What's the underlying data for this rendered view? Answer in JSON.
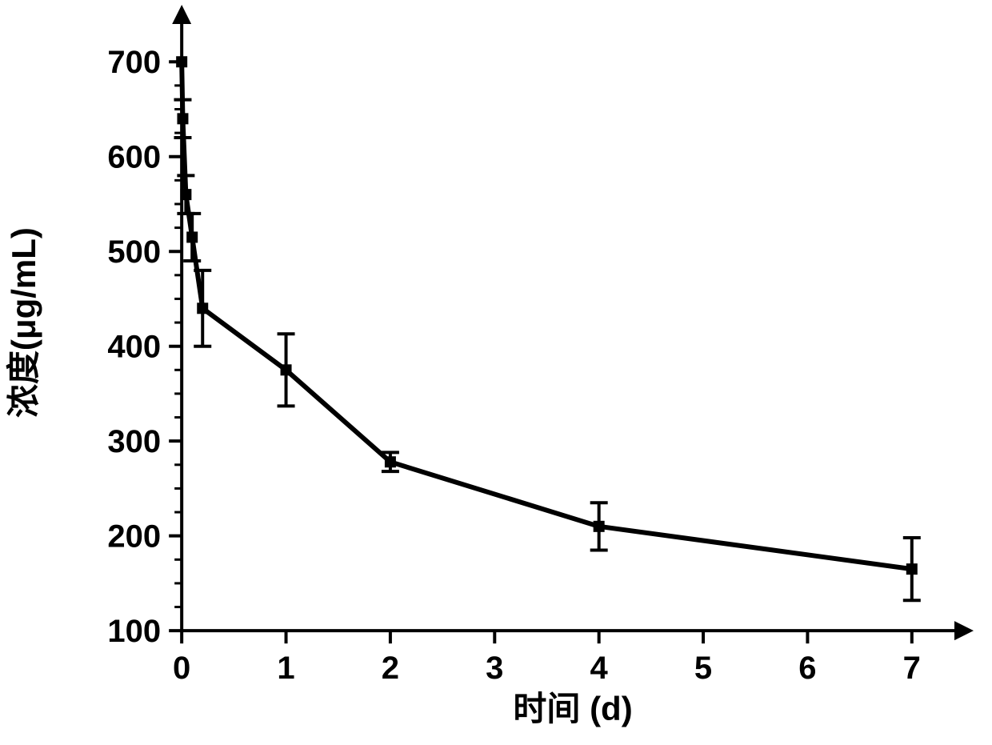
{
  "chart": {
    "type": "line",
    "background_color": "#ffffff",
    "series_color": "#000000",
    "axis_color": "#000000",
    "xlabel": "时间 (d)",
    "ylabel": "浓度(μg/mL)",
    "label_fontsize_pt": 32,
    "tick_fontsize_pt": 30,
    "font_weight": "bold",
    "axis_line_width": 4,
    "series_line_width": 6,
    "marker_style": "square",
    "marker_size": 14,
    "error_cap_width": 22,
    "xlim": [
      -0.4,
      7.5
    ],
    "ylim": [
      90,
      750
    ],
    "x_ticks": [
      0,
      1,
      2,
      3,
      4,
      5,
      6,
      7
    ],
    "y_ticks": [
      100,
      200,
      300,
      400,
      500,
      600,
      700
    ],
    "y_minor_step": 25,
    "grid": false,
    "arrowheads": true,
    "data": {
      "x": [
        0,
        0.01,
        0.04,
        0.1,
        0.2,
        1,
        2,
        4,
        7
      ],
      "y": [
        700,
        640,
        560,
        515,
        440,
        375,
        278,
        210,
        165
      ],
      "err": [
        0,
        20,
        20,
        25,
        40,
        38,
        10,
        25,
        33
      ]
    }
  }
}
